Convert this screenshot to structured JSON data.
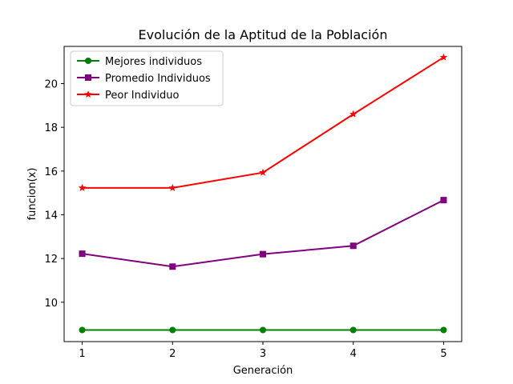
{
  "chart_data": {
    "type": "line",
    "title": "Evolución de la Aptitud de la Población",
    "xlabel": "Generación",
    "ylabel": "funcion(x)",
    "x": [
      1,
      2,
      3,
      4,
      5
    ],
    "xlim": [
      0.8,
      5.2
    ],
    "ylim": [
      8.2,
      21.7
    ],
    "yticks": [
      10,
      12,
      14,
      16,
      18,
      20
    ],
    "xticks": [
      1,
      2,
      3,
      4,
      5
    ],
    "grid": false,
    "legend_position": "top-left",
    "series": [
      {
        "name": "Mejores individuos",
        "color": "#008000",
        "marker": "circle",
        "values": [
          8.73,
          8.73,
          8.73,
          8.73,
          8.73
        ]
      },
      {
        "name": "Promedio Individuos",
        "color": "#800080",
        "marker": "square",
        "values": [
          12.22,
          11.63,
          12.2,
          12.58,
          14.67
        ]
      },
      {
        "name": "Peor Individuo",
        "color": "#ff0000",
        "marker": "star",
        "values": [
          15.23,
          15.23,
          15.93,
          18.6,
          21.2
        ]
      }
    ]
  }
}
